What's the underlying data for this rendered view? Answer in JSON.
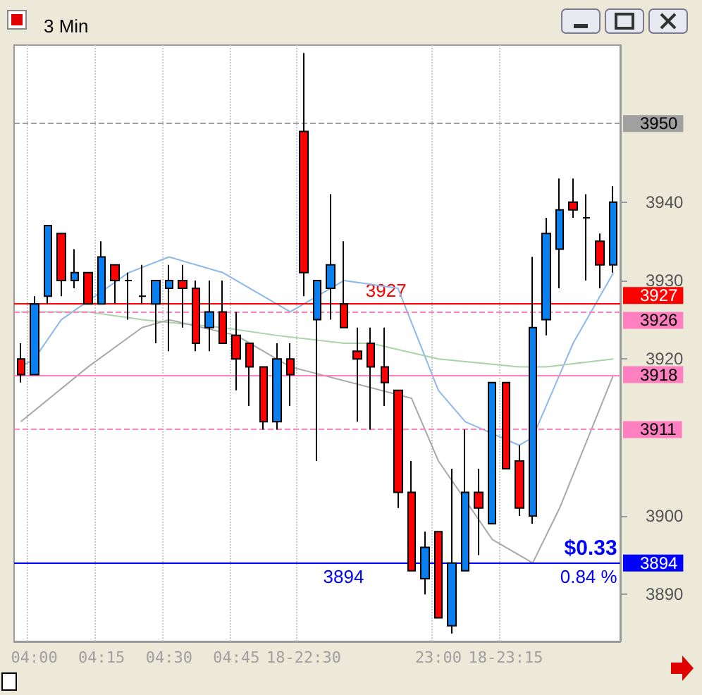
{
  "chart_data": {
    "type": "candlestick",
    "title": "3 Min",
    "categories": [
      null,
      "04:00",
      null,
      null,
      null,
      null,
      "04:15",
      null,
      null,
      null,
      null,
      "04:30",
      null,
      null,
      null,
      null,
      "04:45",
      null,
      null,
      null,
      null,
      "18-22:30",
      null,
      null,
      null,
      null,
      null,
      null,
      null,
      null,
      null,
      "23:00",
      null,
      null,
      null,
      null,
      "18-23:15",
      null,
      null,
      null,
      null,
      null,
      null,
      null,
      null
    ],
    "ohlc": [
      [
        3920,
        3922,
        3917,
        3918
      ],
      [
        3918,
        3928,
        3918,
        3927
      ],
      [
        3928,
        3937,
        3927,
        3937
      ],
      [
        3936,
        3936,
        3928,
        3930
      ],
      [
        3930,
        3934,
        3929,
        3931
      ],
      [
        3931,
        3931,
        3927,
        3927
      ],
      [
        3927,
        3935,
        3927,
        3933
      ],
      [
        3932,
        3932,
        3927,
        3930
      ],
      [
        3930,
        3931,
        3925,
        3930
      ],
      [
        3928,
        3932,
        3927,
        3928
      ],
      [
        3927,
        3930,
        3922,
        3930
      ],
      [
        3929,
        3932,
        3921,
        3930
      ],
      [
        3930,
        3932,
        3924,
        3929
      ],
      [
        3929,
        3930,
        3921,
        3922
      ],
      [
        3924,
        3930,
        3921,
        3926
      ],
      [
        3926,
        3930,
        3922,
        3922
      ],
      [
        3923,
        3926,
        3916,
        3920
      ],
      [
        3922,
        3922,
        3914,
        3919
      ],
      [
        3919,
        3919,
        3911,
        3912
      ],
      [
        3912,
        3922,
        3911,
        3920
      ],
      [
        3920,
        3922,
        3914,
        3918
      ],
      [
        3949,
        3959,
        3928,
        3931
      ],
      [
        3925,
        3930,
        3907,
        3930
      ],
      [
        3929,
        3941,
        3925,
        3932
      ],
      [
        3927,
        3935,
        3924,
        3924
      ],
      [
        3921,
        3924,
        3912,
        3920
      ],
      [
        3922,
        3924,
        3911,
        3919
      ],
      [
        3919,
        3924,
        3914,
        3917
      ],
      [
        3916,
        3916,
        3901,
        3903
      ],
      [
        3903,
        3907,
        3893,
        3893
      ],
      [
        3892,
        3898,
        3890,
        3896
      ],
      [
        3898,
        3898,
        3887,
        3887
      ],
      [
        3886,
        3906,
        3885,
        3894
      ],
      [
        3893,
        3911,
        3893,
        3903
      ],
      [
        3903,
        3906,
        3895,
        3901
      ],
      [
        3899,
        3917,
        3899,
        3917
      ],
      [
        3917,
        3917,
        3906,
        3906
      ],
      [
        3907,
        3909,
        3900,
        3901
      ],
      [
        3900,
        3933,
        3899,
        3924
      ],
      [
        3925,
        3938,
        3923,
        3936
      ],
      [
        3934,
        3943,
        3929,
        3939
      ],
      [
        3940,
        3943,
        3938,
        3939
      ],
      [
        3938,
        3941,
        3930,
        3938
      ],
      [
        3935,
        3936,
        3929,
        3932
      ],
      [
        3932,
        3942,
        3931,
        3940
      ]
    ],
    "series": [
      {
        "type": "line",
        "color": "#8cb8ec",
        "values": [
          3919,
          3920,
          null,
          3925,
          null,
          null,
          null,
          null,
          3931,
          null,
          null,
          3933,
          null,
          null,
          null,
          3931,
          null,
          null,
          null,
          null,
          3926,
          null,
          3928,
          null,
          3930,
          null,
          null,
          null,
          3929,
          null,
          null,
          3916,
          null,
          3912,
          null,
          null,
          null,
          3909,
          3910,
          null,
          3918,
          3922,
          null,
          null,
          3931
        ]
      },
      {
        "type": "line",
        "color": "#a9d3a9",
        "values": [
          3926,
          null,
          null,
          null,
          null,
          3926,
          null,
          null,
          null,
          3925,
          null,
          null,
          null,
          null,
          null,
          3924,
          null,
          null,
          null,
          3923,
          null,
          null,
          null,
          null,
          3922,
          null,
          3922,
          null,
          null,
          null,
          null,
          3920,
          null,
          null,
          null,
          null,
          null,
          3919,
          null,
          3919,
          null,
          null,
          null,
          null,
          3920
        ]
      },
      {
        "type": "line",
        "color": "#a8a8a8",
        "values": [
          3912,
          null,
          null,
          null,
          null,
          3919,
          null,
          null,
          null,
          3924,
          null,
          3925,
          null,
          null,
          null,
          null,
          3923,
          null,
          null,
          null,
          3919,
          null,
          null,
          null,
          null,
          null,
          null,
          null,
          null,
          3915,
          null,
          3907,
          null,
          null,
          null,
          3897,
          null,
          null,
          3894,
          null,
          3901,
          null,
          null,
          null,
          3918
        ]
      }
    ],
    "marker": "none",
    "line_style": "solid",
    "ylim": [
      3884,
      3960
    ],
    "yticks": [
      3890,
      3900,
      3920,
      3930,
      3940
    ],
    "grid": "x",
    "ref_lines": [
      {
        "axis": "y",
        "value": 3950,
        "label": "3950",
        "color": "#a0a0a0",
        "line_style": "dashed"
      },
      {
        "axis": "y",
        "value": 3927,
        "label": "3927",
        "color": "#ff0000",
        "line_style": "solid"
      },
      {
        "axis": "y",
        "value": 3926,
        "label": "3926",
        "color": "#ff80c0",
        "line_style": "dashed"
      },
      {
        "axis": "y",
        "value": 3918,
        "label": "3918",
        "color": "#ff80c0",
        "line_style": "solid"
      },
      {
        "axis": "y",
        "value": 3911,
        "label": "3911",
        "color": "#ff80c0",
        "line_style": "dashed"
      },
      {
        "axis": "y",
        "value": 3894,
        "label": "3894",
        "color": "#0000ff",
        "line_style": "solid"
      }
    ],
    "annotations": [
      {
        "text": "3927",
        "y": 3927
      },
      {
        "text": "3894",
        "y": 3894
      },
      {
        "text": "$0.33",
        "y": 3894
      },
      {
        "text": "0.84 %",
        "y": 3894
      }
    ]
  }
}
